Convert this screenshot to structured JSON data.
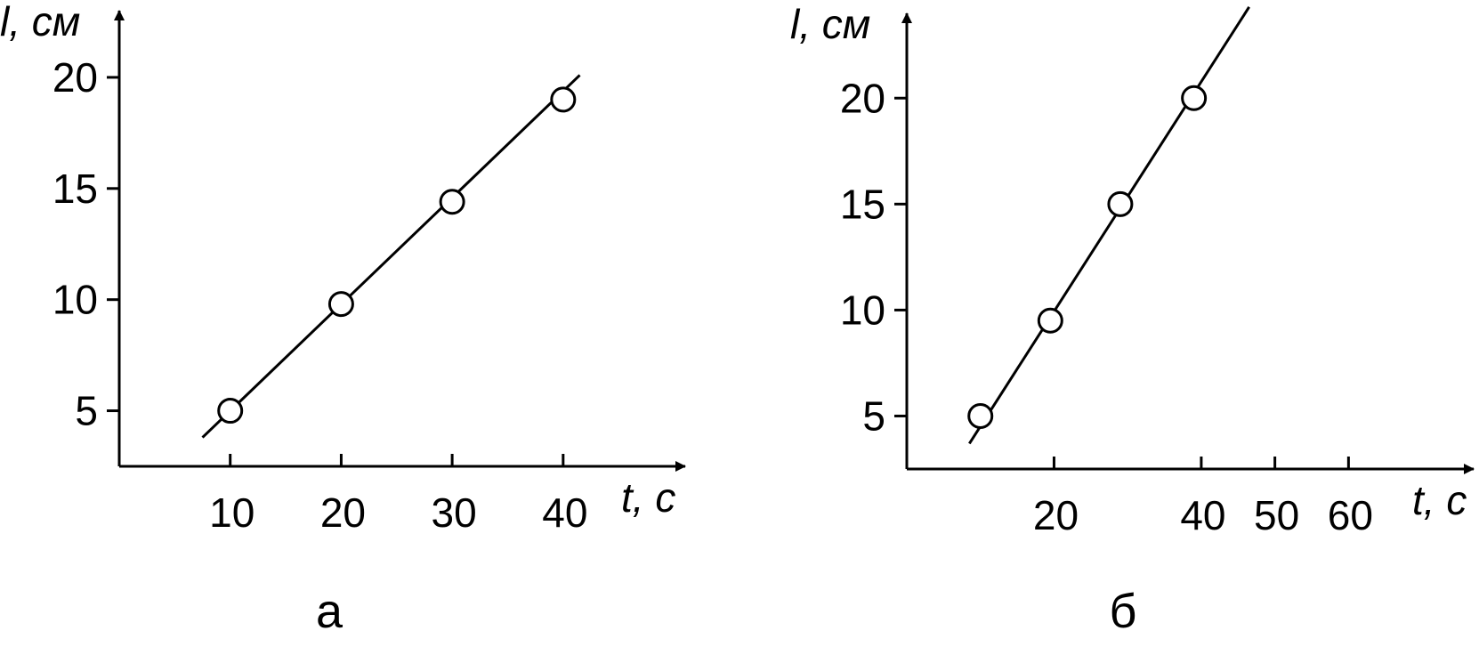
{
  "chart_data": [
    {
      "type": "scatter",
      "panel_label": "а",
      "xlabel": "t, c",
      "ylabel": "l, см",
      "x_ticks": [
        "10",
        "20",
        "30",
        "40"
      ],
      "y_ticks": [
        "5",
        "10",
        "15",
        "20"
      ],
      "xlim": [
        0,
        51
      ],
      "ylim": [
        2.5,
        23
      ],
      "series": [
        {
          "points": [
            [
              10,
              5
            ],
            [
              20,
              9.8
            ],
            [
              30,
              14.4
            ],
            [
              40,
              19
            ]
          ]
        }
      ],
      "fit_line": {
        "x": [
          7.5,
          41.5
        ],
        "y": [
          3.8,
          20.1
        ]
      },
      "marker": "open-circle",
      "grid": false
    },
    {
      "type": "scatter",
      "panel_label": "б",
      "xlabel": "t, c",
      "ylabel": "l, см",
      "x_ticks": [
        "20",
        "40",
        "50",
        "60"
      ],
      "y_ticks": [
        "5",
        "10",
        "15",
        "20"
      ],
      "xlim": [
        0,
        77
      ],
      "ylim": [
        2.5,
        24
      ],
      "series": [
        {
          "points": [
            [
              10,
              5
            ],
            [
              19.5,
              9.5
            ],
            [
              29,
              15
            ],
            [
              39,
              20
            ]
          ]
        }
      ],
      "fit_line": {
        "x": [
          8.5,
          46.5
        ],
        "y": [
          3.7,
          24.3
        ]
      },
      "marker": "open-circle",
      "grid": false
    }
  ]
}
